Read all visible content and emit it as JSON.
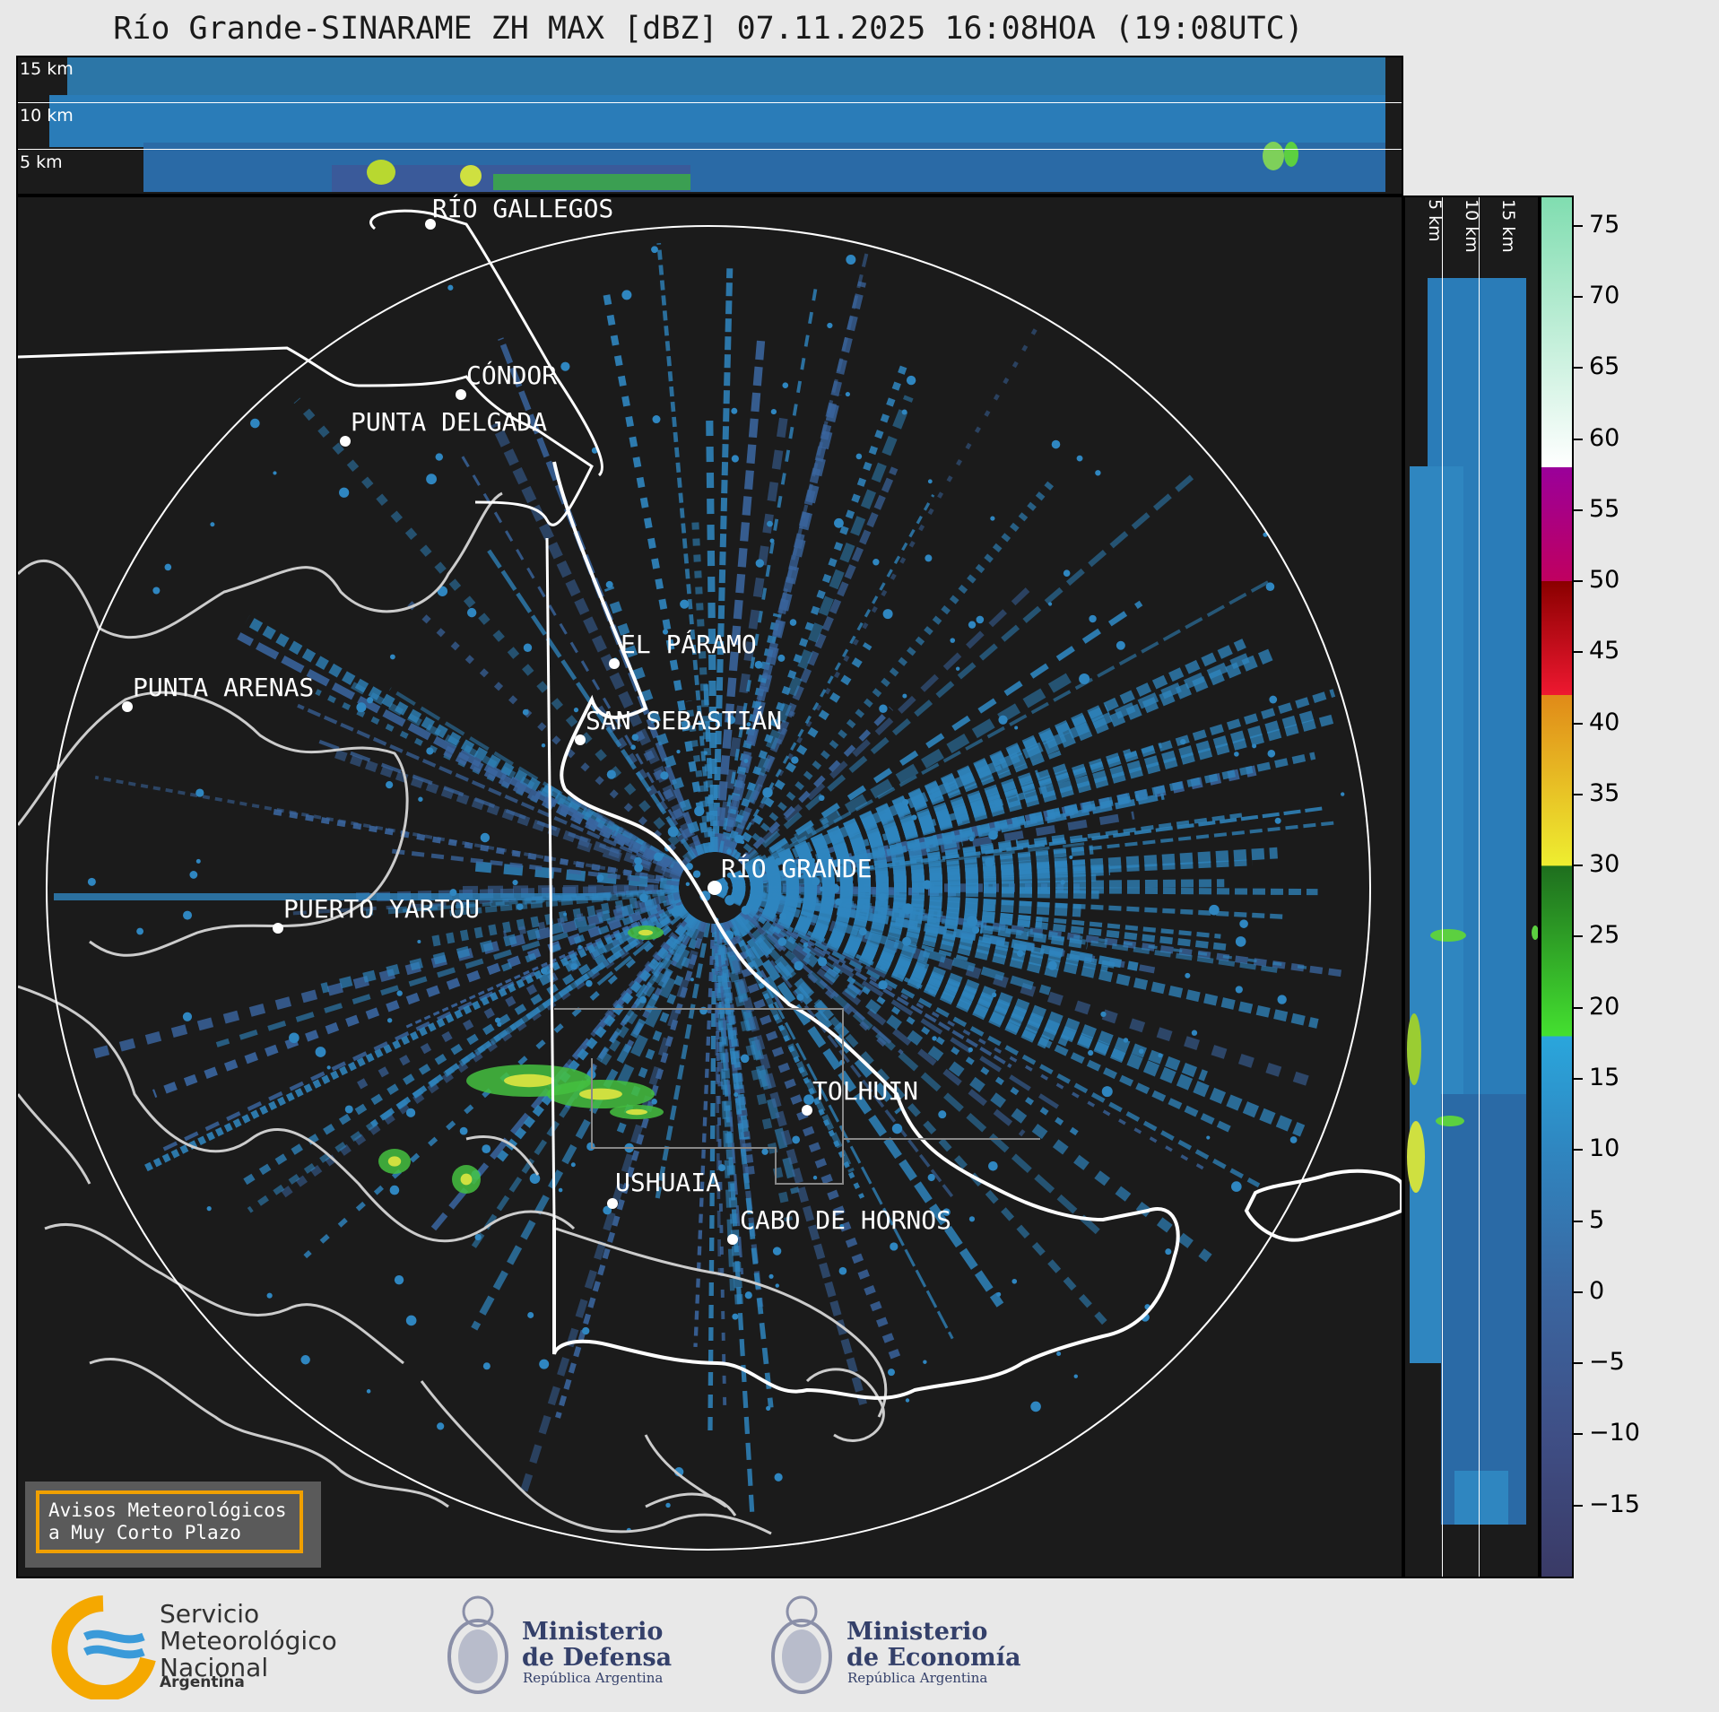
{
  "title": "Río Grande-SINARAME ZH MAX [dBZ] 07.11.2025 16:08HOA (19:08UTC)",
  "top_panel": {
    "height_labels": [
      "15 km",
      "10 km",
      "5 km"
    ]
  },
  "side_panel": {
    "height_labels": [
      "5 km",
      "10 km",
      "15 km"
    ]
  },
  "cities": [
    {
      "name": "RÍO GALLEGOS"
    },
    {
      "name": "CÓNDOR"
    },
    {
      "name": "PUNTA DELGADA"
    },
    {
      "name": "EL PÁRAMO"
    },
    {
      "name": "PUNTA ARENAS"
    },
    {
      "name": "SAN SEBASTIÁN"
    },
    {
      "name": "RÍO GRANDE"
    },
    {
      "name": "PUERTO YARTOU"
    },
    {
      "name": "TOLHUIN"
    },
    {
      "name": "USHUAIA"
    },
    {
      "name": "CABO DE HORNOS"
    }
  ],
  "notice": {
    "line1": "Avisos Meteorológicos",
    "line2": "a Muy Corto Plazo"
  },
  "colorbar": {
    "unit": "dBZ",
    "min": -20,
    "max": 77,
    "ticks": [
      "75",
      "70",
      "65",
      "60",
      "55",
      "50",
      "45",
      "40",
      "35",
      "30",
      "25",
      "20",
      "15",
      "10",
      "5",
      "0",
      "−5",
      "−10",
      "−15"
    ],
    "tick_values": [
      75,
      70,
      65,
      60,
      55,
      50,
      45,
      40,
      35,
      30,
      25,
      20,
      15,
      10,
      5,
      0,
      -5,
      -10,
      -15
    ],
    "stops": [
      {
        "v": -20,
        "c": "#3a3a66"
      },
      {
        "v": -10,
        "c": "#3f4f86"
      },
      {
        "v": 0,
        "c": "#3a66a0"
      },
      {
        "v": 10,
        "c": "#2f86c0"
      },
      {
        "v": 18,
        "c": "#2aa6dc"
      },
      {
        "v": 18.01,
        "c": "#44e030"
      },
      {
        "v": 29.99,
        "c": "#1e6e1e"
      },
      {
        "v": 30,
        "c": "#eeee30"
      },
      {
        "v": 42,
        "c": "#e08a18"
      },
      {
        "v": 42.01,
        "c": "#ee1830"
      },
      {
        "v": 50,
        "c": "#8a0000"
      },
      {
        "v": 50.01,
        "c": "#c00060"
      },
      {
        "v": 58,
        "c": "#9a009a"
      },
      {
        "v": 58.01,
        "c": "#ffffff"
      },
      {
        "v": 77,
        "c": "#80ddb0"
      }
    ]
  },
  "footer": {
    "smn_lines": [
      "Servicio",
      "Meteorológico",
      "Nacional"
    ],
    "smn_country": "Argentina",
    "defensa_lines": [
      "Ministerio",
      "de Defensa"
    ],
    "defensa_sub": "República Argentina",
    "economia_lines": [
      "Ministerio",
      "de Economía"
    ],
    "economia_sub": "República Argentina"
  },
  "colors": {
    "background": "#1b1b1b",
    "coast": "#cccccc",
    "border": "#ffffff",
    "echo": "#2f86c0"
  }
}
